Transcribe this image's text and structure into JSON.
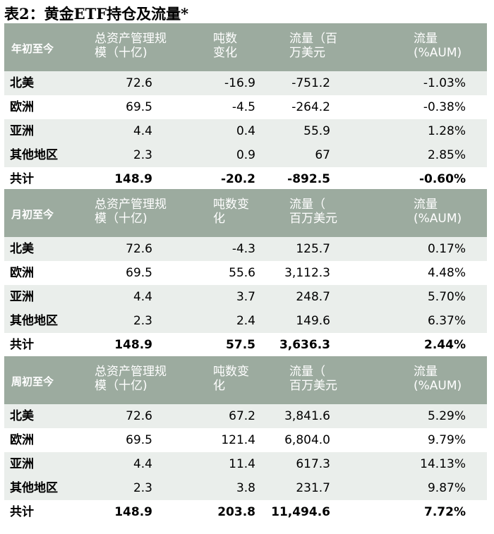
{
  "title": "表2：黄金ETF持仓及流量*",
  "sections": [
    {
      "period": "年初至今",
      "headers": [
        "总资产管理规\n模（十亿)",
        "吨数\n变化",
        "流量（百\n万美元",
        "流量\n(%AUM)"
      ],
      "rows": [
        [
          "北美",
          "72.6",
          "-16.9",
          "-751.2",
          "-1.03%"
        ],
        [
          "欧洲",
          "69.5",
          "-4.5",
          "-264.2",
          "-0.38%"
        ],
        [
          "亚洲",
          "4.4",
          "0.4",
          "55.9",
          "1.28%"
        ],
        [
          "其他地区",
          "2.3",
          "0.9",
          "67",
          "2.85%"
        ],
        [
          "共计",
          "148.9",
          "-20.2",
          "-892.5",
          "-0.60%"
        ]
      ]
    },
    {
      "period": "月初至今",
      "headers": [
        "总资产管理规\n模（十亿)",
        "吨数变\n化",
        "流量（\n百万美元",
        "流量\n(%AUM)"
      ],
      "rows": [
        [
          "北美",
          "72.6",
          "-4.3",
          "125.7",
          "0.17%"
        ],
        [
          "欧洲",
          "69.5",
          "55.6",
          "3,112.3",
          "4.48%"
        ],
        [
          "亚洲",
          "4.4",
          "3.7",
          "248.7",
          "5.70%"
        ],
        [
          "其他地区",
          "2.3",
          "2.4",
          "149.6",
          "6.37%"
        ],
        [
          "共计",
          "148.9",
          "57.5",
          "3,636.3",
          "2.44%"
        ]
      ]
    },
    {
      "period": "周初至今",
      "headers": [
        "总资产管理规\n模（十亿)",
        "吨数变\n化",
        "流量（\n百万美元",
        "流量\n(%AUM)"
      ],
      "rows": [
        [
          "北美",
          "72.6",
          "67.2",
          "3,841.6",
          "5.29%"
        ],
        [
          "欧洲",
          "69.5",
          "121.4",
          "6,804.0",
          "9.79%"
        ],
        [
          "亚洲",
          "4.4",
          "11.4",
          "617.3",
          "14.13%"
        ],
        [
          "其他地区",
          "2.3",
          "3.8",
          "231.7",
          "9.87%"
        ],
        [
          "共计",
          "148.9",
          "203.8",
          "11,494.6",
          "7.72%"
        ]
      ]
    }
  ]
}
